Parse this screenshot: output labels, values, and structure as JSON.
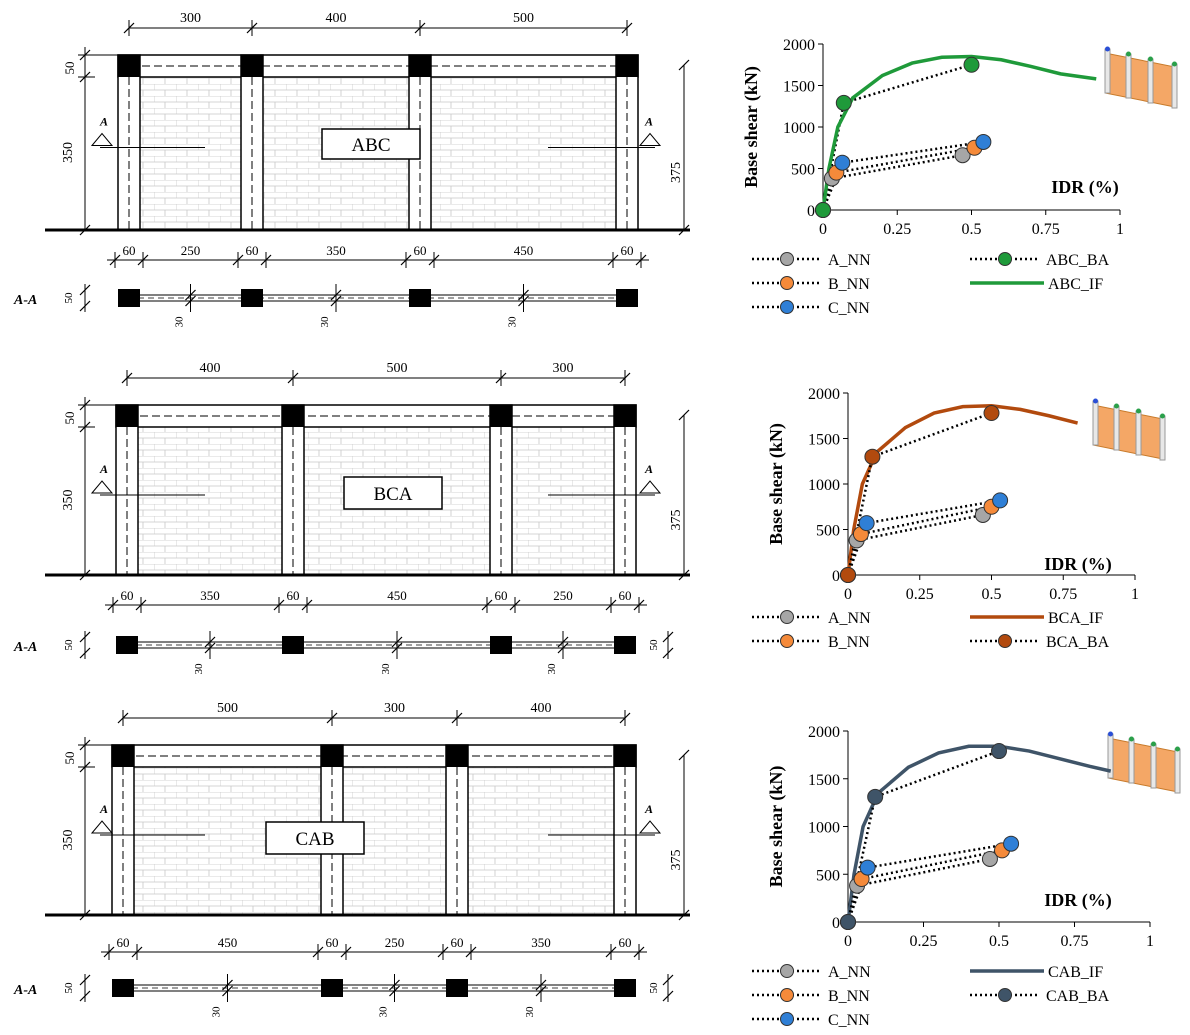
{
  "colors": {
    "A_NN": "#a6a6a6",
    "B_NN": "#f58a3a",
    "C_NN": "#2f7fd6",
    "ABC": "#1f9a3a",
    "BCA": "#b24a0e",
    "CAB": "#3f5468",
    "wall": "#f4a766"
  },
  "drawings": [
    {
      "name": "ABC",
      "label": "ABC",
      "top_dims": [
        "300",
        "400",
        "500"
      ],
      "bottom_dims": [
        "60",
        "250",
        "60",
        "350",
        "60",
        "450",
        "60"
      ],
      "left_dim_top": "50",
      "left_dim": "350",
      "right_dim": "375",
      "section_mark": "A",
      "aa_label": "A-A",
      "aa_thk": "50",
      "aa_30": "30"
    },
    {
      "name": "BCA",
      "label": "BCA",
      "top_dims": [
        "400",
        "500",
        "300"
      ],
      "bottom_dims": [
        "60",
        "350",
        "60",
        "450",
        "60",
        "250",
        "60"
      ],
      "left_dim_top": "50",
      "left_dim": "350",
      "right_dim": "375",
      "section_mark": "A",
      "aa_label": "A-A",
      "aa_thk": "50",
      "aa_30": "30"
    },
    {
      "name": "CAB",
      "label": "CAB",
      "top_dims": [
        "500",
        "300",
        "400"
      ],
      "bottom_dims": [
        "60",
        "450",
        "60",
        "250",
        "60",
        "350",
        "60"
      ],
      "left_dim_top": "50",
      "left_dim": "350",
      "right_dim": "375",
      "section_mark": "A",
      "aa_label": "A-A",
      "aa_thk": "50",
      "aa_30": "30"
    }
  ],
  "chart_data": [
    {
      "type": "line",
      "ylabel": "Base shear (kN)",
      "xlabel": "IDR (%)",
      "xlim": [
        0,
        1
      ],
      "ylim": [
        0,
        2000
      ],
      "xticks": [
        "0",
        "0.25",
        "0.5",
        "0.75",
        "1"
      ],
      "yticks": [
        "0",
        "500",
        "1000",
        "1500",
        "2000"
      ],
      "series": [
        {
          "name": "A_NN",
          "style": "dotted-marker",
          "color": "#a6a6a6",
          "x": [
            0,
            0.03,
            0.47
          ],
          "y": [
            0,
            380,
            660
          ]
        },
        {
          "name": "B_NN",
          "style": "dotted-marker",
          "color": "#f58a3a",
          "x": [
            0,
            0.045,
            0.51
          ],
          "y": [
            0,
            450,
            750
          ]
        },
        {
          "name": "C_NN",
          "style": "dotted-marker",
          "color": "#2f7fd6",
          "x": [
            0,
            0.065,
            0.54
          ],
          "y": [
            0,
            570,
            820
          ]
        },
        {
          "name": "ABC_BA",
          "style": "dotted-marker",
          "color": "#1f9a3a",
          "x": [
            0,
            0.07,
            0.5
          ],
          "y": [
            0,
            1290,
            1750
          ]
        },
        {
          "name": "ABC_IF",
          "style": "solid",
          "color": "#1f9a3a",
          "x": [
            0,
            0.02,
            0.05,
            0.1,
            0.2,
            0.3,
            0.4,
            0.5,
            0.6,
            0.7,
            0.8,
            0.92
          ],
          "y": [
            0,
            500,
            1000,
            1350,
            1620,
            1770,
            1840,
            1850,
            1810,
            1730,
            1640,
            1580
          ]
        }
      ],
      "legend": [
        "A_NN",
        "ABC_BA",
        "B_NN",
        "ABC_IF",
        "C_NN"
      ]
    },
    {
      "type": "line",
      "ylabel": "Base shear (kN)",
      "xlabel": "IDR (%)",
      "xlim": [
        0,
        1
      ],
      "ylim": [
        0,
        2000
      ],
      "xticks": [
        "0",
        "0.25",
        "0.5",
        "0.75",
        "1"
      ],
      "yticks": [
        "0",
        "500",
        "1000",
        "1500",
        "2000"
      ],
      "series": [
        {
          "name": "A_NN",
          "style": "dotted-marker",
          "color": "#a6a6a6",
          "x": [
            0,
            0.03,
            0.47
          ],
          "y": [
            0,
            380,
            660
          ]
        },
        {
          "name": "B_NN",
          "style": "dotted-marker",
          "color": "#f58a3a",
          "x": [
            0,
            0.045,
            0.5
          ],
          "y": [
            0,
            450,
            750
          ]
        },
        {
          "name": "C_NN",
          "style": "dotted-marker",
          "color": "#2f7fd6",
          "x": [
            0,
            0.065,
            0.53
          ],
          "y": [
            0,
            570,
            820
          ]
        },
        {
          "name": "BCA_IF",
          "style": "solid",
          "color": "#b24a0e",
          "x": [
            0,
            0.02,
            0.05,
            0.1,
            0.2,
            0.3,
            0.4,
            0.5,
            0.6,
            0.7,
            0.8
          ],
          "y": [
            0,
            500,
            1000,
            1350,
            1620,
            1780,
            1850,
            1860,
            1820,
            1750,
            1670
          ]
        },
        {
          "name": "BCA_BA",
          "style": "dotted-marker",
          "color": "#b24a0e",
          "x": [
            0,
            0.085,
            0.5
          ],
          "y": [
            0,
            1300,
            1780
          ]
        }
      ],
      "legend": [
        "A_NN",
        "BCA_IF",
        "B_NN",
        "BCA_BA"
      ]
    },
    {
      "type": "line",
      "ylabel": "Base shear (kN)",
      "xlabel": "IDR (%)",
      "xlim": [
        0,
        1
      ],
      "ylim": [
        0,
        2000
      ],
      "xticks": [
        "0",
        "0.25",
        "0.5",
        "0.75",
        "1"
      ],
      "yticks": [
        "0",
        "500",
        "1000",
        "1500",
        "2000"
      ],
      "series": [
        {
          "name": "A_NN",
          "style": "dotted-marker",
          "color": "#a6a6a6",
          "x": [
            0,
            0.03,
            0.47
          ],
          "y": [
            0,
            380,
            660
          ]
        },
        {
          "name": "B_NN",
          "style": "dotted-marker",
          "color": "#f58a3a",
          "x": [
            0,
            0.045,
            0.51
          ],
          "y": [
            0,
            450,
            750
          ]
        },
        {
          "name": "C_NN",
          "style": "dotted-marker",
          "color": "#2f7fd6",
          "x": [
            0,
            0.065,
            0.54
          ],
          "y": [
            0,
            570,
            820
          ]
        },
        {
          "name": "CAB_IF",
          "style": "solid",
          "color": "#3f5468",
          "x": [
            0,
            0.02,
            0.05,
            0.1,
            0.2,
            0.3,
            0.4,
            0.5,
            0.6,
            0.7,
            0.8,
            0.87
          ],
          "y": [
            0,
            500,
            1000,
            1350,
            1620,
            1770,
            1840,
            1840,
            1790,
            1710,
            1630,
            1580
          ]
        },
        {
          "name": "CAB_BA",
          "style": "dotted-marker",
          "color": "#3f5468",
          "x": [
            0,
            0.09,
            0.5
          ],
          "y": [
            0,
            1310,
            1790
          ]
        }
      ],
      "legend": [
        "A_NN",
        "CAB_IF",
        "B_NN",
        "CAB_BA",
        "C_NN"
      ]
    }
  ]
}
